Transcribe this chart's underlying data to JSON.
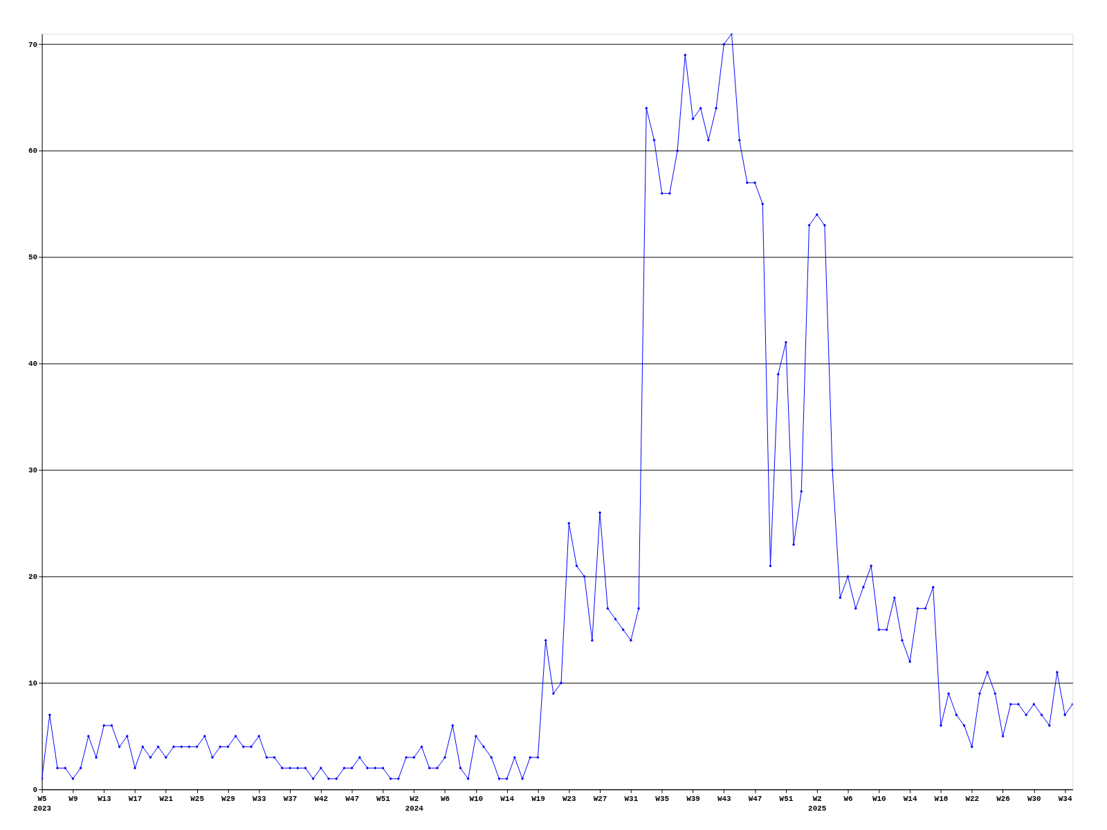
{
  "chart_data": {
    "type": "line",
    "categories": [
      "W5\n2023",
      null,
      null,
      null,
      "W9",
      null,
      null,
      null,
      "W13",
      null,
      null,
      null,
      "W17",
      null,
      null,
      null,
      "W21",
      null,
      null,
      null,
      "W25",
      null,
      null,
      null,
      "W29",
      null,
      null,
      null,
      "W33",
      null,
      null,
      null,
      "W37",
      null,
      null,
      null,
      "W42",
      null,
      null,
      null,
      "W47",
      null,
      null,
      null,
      "W51",
      null,
      null,
      null,
      "W2\n2024",
      null,
      null,
      null,
      "W6",
      null,
      null,
      null,
      "W10",
      null,
      null,
      null,
      "W14",
      null,
      null,
      null,
      "W19",
      null,
      null,
      null,
      "W23",
      null,
      null,
      null,
      "W27",
      null,
      null,
      null,
      "W31",
      null,
      null,
      null,
      "W35",
      null,
      null,
      null,
      "W39",
      null,
      null,
      null,
      "W43",
      null,
      null,
      null,
      "W47",
      null,
      null,
      null,
      "W51",
      null,
      null,
      null,
      "W2\n2025",
      null,
      null,
      null,
      "W6",
      null,
      null,
      null,
      "W10",
      null,
      null,
      null,
      "W14",
      null,
      null,
      null,
      "W18",
      null,
      null,
      null,
      "W22",
      null,
      null,
      null,
      "W26",
      null,
      null,
      null,
      "W30",
      null,
      null,
      null,
      "W34",
      null
    ],
    "series": [
      {
        "color": "#0000ff",
        "values": [
          1,
          7,
          2,
          2,
          1,
          2,
          5,
          3,
          6,
          6,
          4,
          5,
          2,
          4,
          3,
          4,
          3,
          4,
          4,
          4,
          4,
          5,
          3,
          4,
          4,
          5,
          4,
          4,
          5,
          3,
          3,
          2,
          2,
          2,
          2,
          1,
          2,
          1,
          1,
          2,
          2,
          3,
          2,
          2,
          2,
          1,
          1,
          3,
          3,
          4,
          2,
          2,
          3,
          6,
          2,
          1,
          5,
          4,
          3,
          1,
          1,
          3,
          1,
          3,
          3,
          14,
          9,
          10,
          25,
          21,
          20,
          14,
          26,
          17,
          16,
          15,
          14,
          17,
          64,
          61,
          56,
          56,
          60,
          69,
          63,
          64,
          61,
          64,
          70,
          71,
          61,
          57,
          57,
          55,
          21,
          39,
          42,
          23,
          28,
          53,
          54,
          53,
          30,
          18,
          20,
          17,
          19,
          21,
          15,
          15,
          18,
          14,
          12,
          17,
          17,
          19,
          6,
          9,
          7,
          6,
          4,
          9,
          11,
          9,
          5,
          8,
          8,
          7,
          8,
          7,
          6,
          11,
          7,
          8
        ]
      }
    ],
    "ylim": [
      0,
      71
    ],
    "yticks": [
      0,
      10,
      20,
      30,
      40,
      50,
      60,
      70
    ],
    "grid": "y",
    "marker": "diamond",
    "line_style": "solid"
  }
}
